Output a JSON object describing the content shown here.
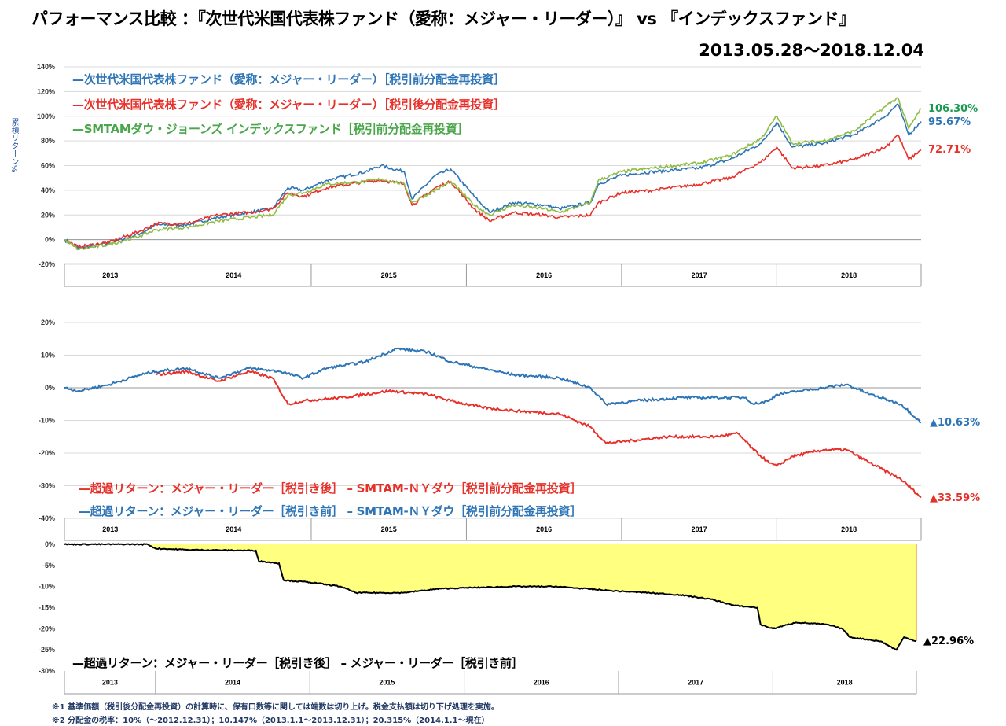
{
  "header": {
    "title": "パフォーマンス比較 ：『次世代米国代表株ファンド（愛称：メジャー・リーダー）』 vs 『インデックスファンド』",
    "period": "2013.05.28～2018.12.04"
  },
  "notes": [
    "※1 基準価額（税引後分配金再投資）の計算時に、保有口数等に関しては端数は切り上げ。税金支払額は切り下げ処理を実施。",
    "※2 分配金の税率：10%（～2012.12.31）；10.147%（2013.1.1～2013.12.31）；20.315%（2014.1.1～現在）"
  ],
  "colors": {
    "blue": "#2e75b6",
    "red": "#e8302a",
    "green": "#8fbc45",
    "black": "#000000",
    "fill": "#ffff80",
    "grid": "#d9d9d9"
  },
  "chart_data": [
    {
      "type": "line",
      "ylabel": "累積リターン%",
      "ylim": [
        -20,
        140
      ],
      "yticks": [
        "140%",
        "120%",
        "100%",
        "80%",
        "60%",
        "40%",
        "20%",
        "0%",
        "-20%"
      ],
      "xlim": [
        2013.41,
        2018.93
      ],
      "categories": [
        "2013",
        "2014",
        "2015",
        "2016",
        "2017",
        "2018"
      ],
      "grid": true,
      "legend": "top-left",
      "x": [
        2013.41,
        2013.5,
        2013.7,
        2013.9,
        2014.0,
        2014.2,
        2014.4,
        2014.6,
        2014.75,
        2014.85,
        2014.95,
        2015.1,
        2015.35,
        2015.45,
        2015.6,
        2015.65,
        2015.8,
        2015.9,
        2016.05,
        2016.15,
        2016.3,
        2016.5,
        2016.6,
        2016.8,
        2016.85,
        2017.0,
        2017.2,
        2017.5,
        2017.7,
        2017.9,
        2018.0,
        2018.1,
        2018.3,
        2018.5,
        2018.7,
        2018.78,
        2018.85,
        2018.93
      ],
      "series": [
        {
          "name": "—次世代米国代表株ファンド（愛称：メジャー・リーダー）［税引前分配金再投資］",
          "color": "#2e75b6",
          "end_label": "95.67%",
          "values": [
            0,
            -7,
            -3,
            5,
            12,
            12,
            18,
            22,
            25,
            42,
            40,
            48,
            55,
            60,
            55,
            33,
            52,
            57,
            35,
            22,
            30,
            28,
            25,
            30,
            45,
            52,
            55,
            58,
            65,
            78,
            95,
            75,
            78,
            85,
            100,
            110,
            85,
            95.67
          ]
        },
        {
          "name": "—次世代米国代表株ファンド（愛称：メジャー・リーダー）［税引後分配金再投資］",
          "color": "#e8302a",
          "end_label": "72.71%",
          "values": [
            0,
            -6,
            -2,
            7,
            13,
            13,
            20,
            22,
            25,
            38,
            35,
            42,
            47,
            48,
            45,
            28,
            42,
            47,
            25,
            15,
            22,
            20,
            18,
            20,
            30,
            38,
            40,
            45,
            50,
            63,
            75,
            58,
            60,
            65,
            75,
            85,
            65,
            72.71
          ]
        },
        {
          "name": "—SMTAMダウ・ジョーンズ インデックスファンド［税引前分配金再投資］",
          "color": "#8fbc45",
          "end_label": "106.30%",
          "values": [
            0,
            -8,
            -4,
            3,
            8,
            10,
            15,
            18,
            20,
            36,
            38,
            45,
            47,
            49,
            45,
            30,
            40,
            47,
            28,
            20,
            28,
            25,
            22,
            30,
            48,
            55,
            58,
            62,
            68,
            82,
            100,
            78,
            80,
            88,
            108,
            115,
            90,
            106.3
          ]
        }
      ]
    },
    {
      "type": "line",
      "ylim": [
        -40,
        20
      ],
      "yticks": [
        "20%",
        "10%",
        "0%",
        "-10%",
        "-20%",
        "-30%",
        "-40%"
      ],
      "xlim": [
        2013.41,
        2018.93
      ],
      "categories": [
        "2013",
        "2014",
        "2015",
        "2016",
        "2017",
        "2018"
      ],
      "grid": true,
      "legend": "bottom-left",
      "series": [
        {
          "name": "—超過リターン：メジャー・リーダー［税引き後］ – SMTAM-ＮＹダウ［税引前分配金再投資］",
          "color": "#e8302a",
          "end_label": "▲33.59%",
          "x": [
            2014.0,
            2014.2,
            2014.4,
            2014.6,
            2014.75,
            2014.85,
            2014.95,
            2015.2,
            2015.5,
            2015.75,
            2015.9,
            2016.1,
            2016.3,
            2016.6,
            2016.8,
            2016.9,
            2017.1,
            2017.3,
            2017.6,
            2017.75,
            2017.85,
            2017.95,
            2018.0,
            2018.1,
            2018.3,
            2018.45,
            2018.6,
            2018.8,
            2018.93
          ],
          "values": [
            4,
            5,
            2,
            5,
            3,
            -5,
            -4,
            -3,
            -1,
            -2,
            -4,
            -6,
            -7,
            -8,
            -12,
            -17,
            -16,
            -15,
            -15,
            -14,
            -19,
            -23,
            -24,
            -21,
            -19,
            -19,
            -23,
            -28,
            -33.59
          ]
        },
        {
          "name": "—超過リターン：メジャー・リーダー［税引き前］ – SMTAM-ＮＹダウ［税引前分配金再投資］",
          "color": "#2e75b6",
          "end_label": "▲10.63%",
          "x": [
            2013.41,
            2013.5,
            2013.7,
            2013.9,
            2014.0,
            2014.2,
            2014.4,
            2014.6,
            2014.8,
            2014.95,
            2015.1,
            2015.35,
            2015.55,
            2015.75,
            2015.9,
            2016.1,
            2016.3,
            2016.6,
            2016.8,
            2016.9,
            2017.1,
            2017.4,
            2017.6,
            2017.8,
            2017.85,
            2017.95,
            2018.0,
            2018.15,
            2018.3,
            2018.45,
            2018.6,
            2018.8,
            2018.93
          ],
          "values": [
            0,
            -1,
            1,
            4,
            5,
            6,
            3,
            6,
            5,
            3,
            6,
            8,
            12,
            11,
            8,
            6,
            4,
            3,
            0,
            -5,
            -4,
            -3,
            -3,
            -3,
            -5,
            -4,
            -2,
            -1,
            0,
            1,
            -2,
            -5,
            -10.63
          ]
        }
      ]
    },
    {
      "type": "area",
      "ylim": [
        -30,
        0
      ],
      "yticks": [
        "0%",
        "-5%",
        "-10%",
        "-15%",
        "-20%",
        "-25%",
        "-30%"
      ],
      "xlim": [
        2013.41,
        2018.93
      ],
      "categories": [
        "2013",
        "2014",
        "2015",
        "2016",
        "2017",
        "2018"
      ],
      "grid": false,
      "legend": "bottom-left",
      "legend_text": "—超過リターン：メジャー・リーダー［税引き後］ – メジャー・リーダー［税引き前］",
      "series": [
        {
          "name": "—超過リターン：メジャー・リーダー［税引き後］ – メジャー・リーダー［税引き前］",
          "color": "#000000",
          "end_label": "▲22.96%",
          "x": [
            2013.41,
            2013.95,
            2014.0,
            2014.2,
            2014.65,
            2014.67,
            2014.8,
            2014.83,
            2015.0,
            2015.2,
            2015.3,
            2015.6,
            2015.85,
            2016.3,
            2016.6,
            2016.95,
            2017.2,
            2017.4,
            2017.6,
            2017.75,
            2017.9,
            2017.92,
            2018.0,
            2018.15,
            2018.35,
            2018.45,
            2018.5,
            2018.7,
            2018.8,
            2018.85,
            2018.93
          ],
          "values": [
            0,
            0,
            -1,
            -1.3,
            -1.5,
            -4,
            -4.5,
            -8.5,
            -9,
            -10,
            -11.5,
            -11.5,
            -10.5,
            -10,
            -10,
            -11,
            -11.5,
            -12,
            -13,
            -14.5,
            -15,
            -19,
            -20,
            -18.5,
            -19,
            -20,
            -22,
            -23,
            -25,
            -22,
            -22.96
          ]
        }
      ]
    }
  ]
}
